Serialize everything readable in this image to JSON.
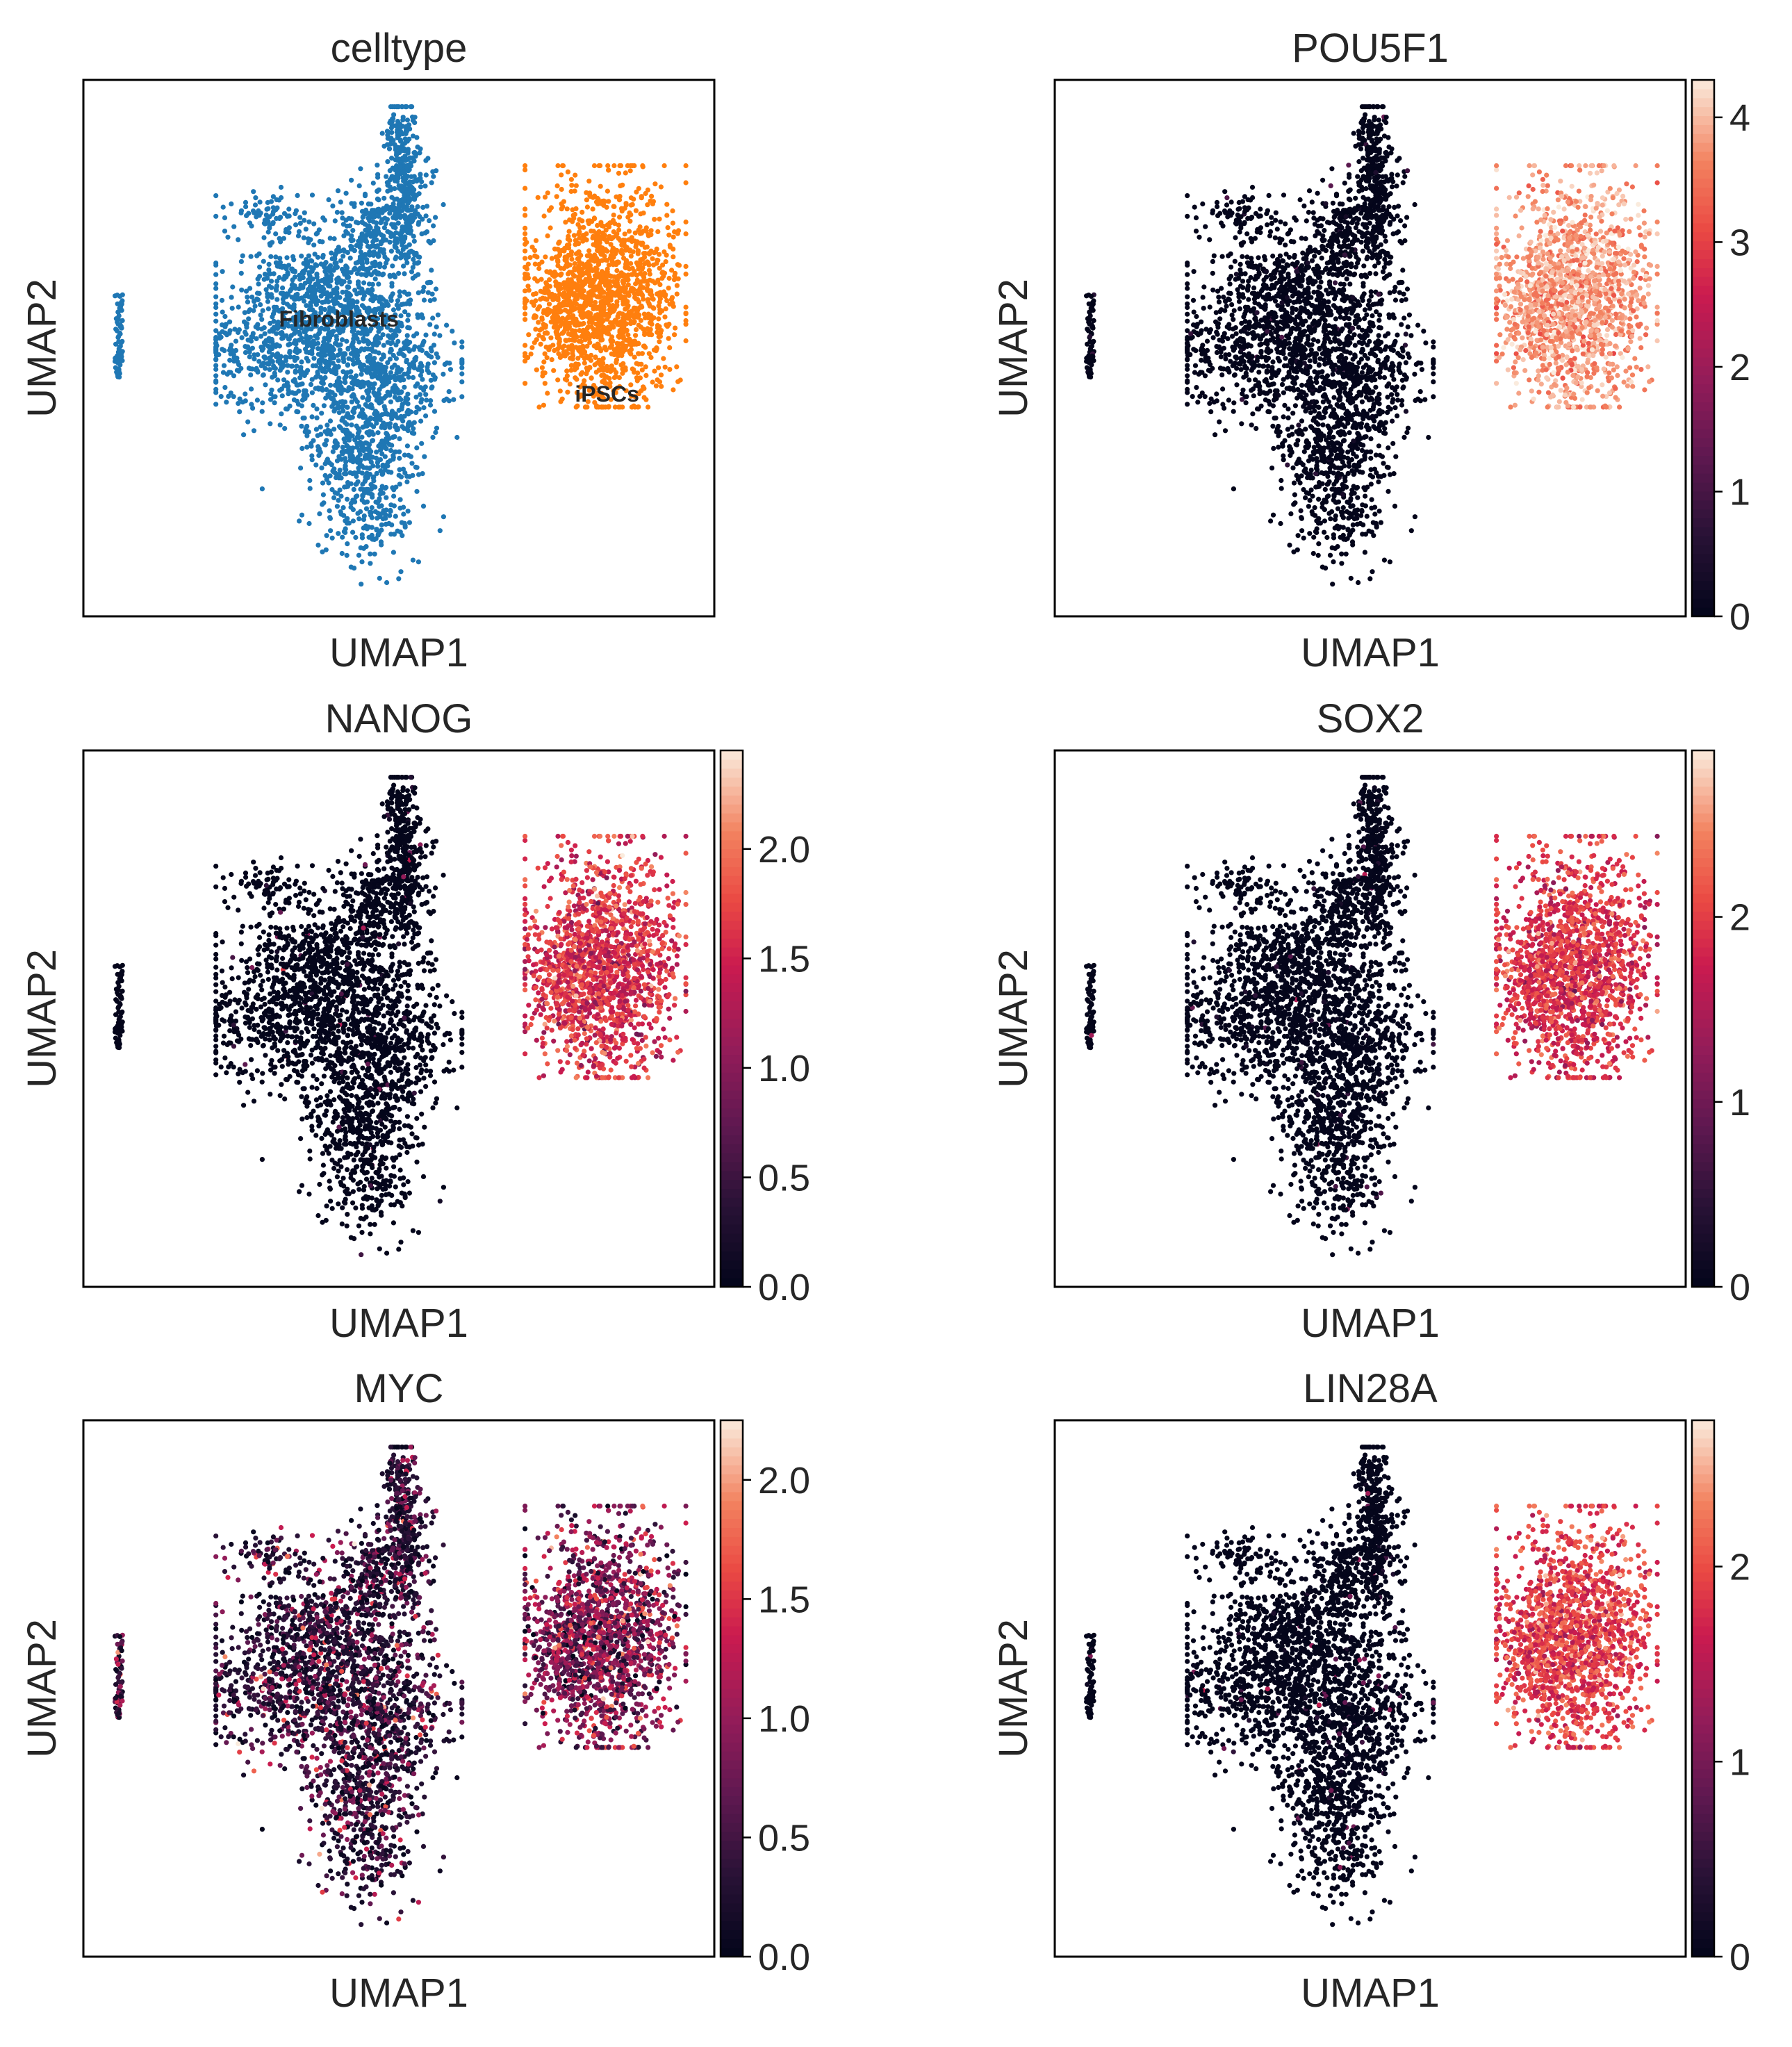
{
  "chart_data": [
    {
      "type": "scatter",
      "title": "celltype",
      "xlabel": "UMAP1",
      "ylabel": "UMAP2",
      "color_mode": "categorical",
      "categories": [
        "Fibroblasts",
        "iPSCs"
      ],
      "category_colors": [
        "#1f77b4",
        "#ff7f0e"
      ],
      "cluster_labels": [
        "Fibroblasts",
        "iPSCs"
      ]
    },
    {
      "type": "scatter",
      "title": "POU5F1",
      "xlabel": "UMAP1",
      "ylabel": "UMAP2",
      "color_mode": "continuous",
      "colormap": "rocket",
      "colorbar_max": 4.3,
      "colorbar_ticks": [
        "0",
        "1",
        "2",
        "3",
        "4"
      ],
      "colorbar_tick_values": [
        0,
        1,
        2,
        3,
        4
      ],
      "fibro_mean": 0.03,
      "ipsc_mean": 3.8
    },
    {
      "type": "scatter",
      "title": "NANOG",
      "xlabel": "UMAP1",
      "ylabel": "UMAP2",
      "color_mode": "continuous",
      "colormap": "rocket",
      "colorbar_max": 2.45,
      "colorbar_ticks": [
        "0.0",
        "0.5",
        "1.0",
        "1.5",
        "2.0"
      ],
      "colorbar_tick_values": [
        0,
        0.5,
        1.0,
        1.5,
        2.0
      ],
      "fibro_mean": 0.03,
      "ipsc_mean": 1.6
    },
    {
      "type": "scatter",
      "title": "SOX2",
      "xlabel": "UMAP1",
      "ylabel": "UMAP2",
      "color_mode": "continuous",
      "colormap": "rocket",
      "colorbar_max": 2.9,
      "colorbar_ticks": [
        "0",
        "1",
        "2"
      ],
      "colorbar_tick_values": [
        0,
        1,
        2
      ],
      "fibro_mean": 0.03,
      "ipsc_mean": 1.9
    },
    {
      "type": "scatter",
      "title": "MYC",
      "xlabel": "UMAP1",
      "ylabel": "UMAP2",
      "color_mode": "continuous",
      "colormap": "rocket",
      "colorbar_max": 2.25,
      "colorbar_ticks": [
        "0.0",
        "0.5",
        "1.0",
        "1.5",
        "2.0"
      ],
      "colorbar_tick_values": [
        0,
        0.5,
        1.0,
        1.5,
        2.0
      ],
      "fibro_mean": 0.45,
      "ipsc_mean": 0.9
    },
    {
      "type": "scatter",
      "title": "LIN28A",
      "xlabel": "UMAP1",
      "ylabel": "UMAP2",
      "color_mode": "continuous",
      "colormap": "rocket",
      "colorbar_max": 2.75,
      "colorbar_ticks": [
        "0",
        "1",
        "2"
      ],
      "colorbar_tick_values": [
        0,
        1,
        2
      ],
      "fibro_mean": 0.04,
      "ipsc_mean": 1.9
    }
  ]
}
